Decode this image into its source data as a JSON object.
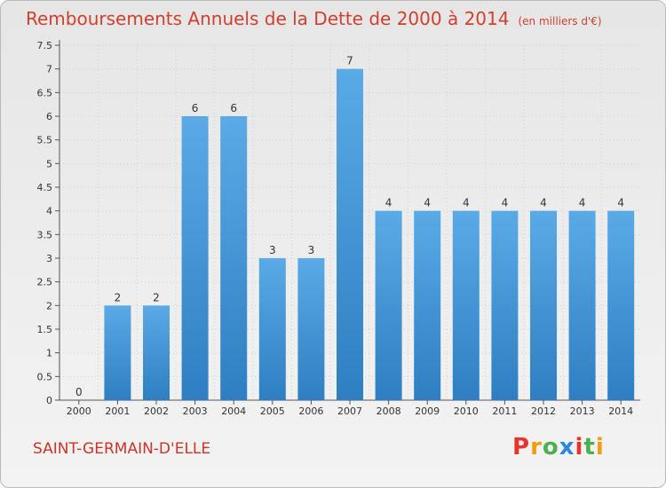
{
  "header": {
    "title": "Remboursements Annuels de la Dette de 2000 à 2014",
    "unit": "(en milliers d'€)"
  },
  "footer": {
    "commune": "SAINT-GERMAIN-D'ELLE",
    "brand_letters": [
      "P",
      "r",
      "o",
      "x",
      "i",
      "t",
      "i"
    ],
    "brand_colors": [
      "#e8342b",
      "#f39c12",
      "#4caf50",
      "#2e86de",
      "#e8342b",
      "#4caf50",
      "#f39c12"
    ]
  },
  "colors": {
    "bar": "#5aaae6",
    "bar_dark": "#2e7fc2",
    "text": "#333333",
    "title": "#d0402e"
  },
  "chart_data": {
    "type": "bar",
    "categories": [
      "2000",
      "2001",
      "2002",
      "2003",
      "2004",
      "2005",
      "2006",
      "2007",
      "2008",
      "2009",
      "2010",
      "2011",
      "2012",
      "2013",
      "2014"
    ],
    "values": [
      0,
      2,
      2,
      6,
      6,
      3,
      3,
      7,
      4,
      4,
      4,
      4,
      4,
      4,
      4
    ],
    "data_labels": [
      "0",
      "2",
      "2",
      "6",
      "6",
      "3",
      "3",
      "7",
      "4",
      "4",
      "4",
      "4",
      "4",
      "4",
      "4"
    ],
    "yticks": [
      "0",
      "0.5",
      "1",
      "1.5",
      "2",
      "2.5",
      "3",
      "3.5",
      "4",
      "4.5",
      "5",
      "5.5",
      "6",
      "6.5",
      "7",
      "7.5"
    ],
    "ylim": [
      0,
      7.5
    ],
    "grid": true,
    "title": "Remboursements Annuels de la Dette de 2000 à 2014",
    "xlabel": "",
    "ylabel": ""
  }
}
